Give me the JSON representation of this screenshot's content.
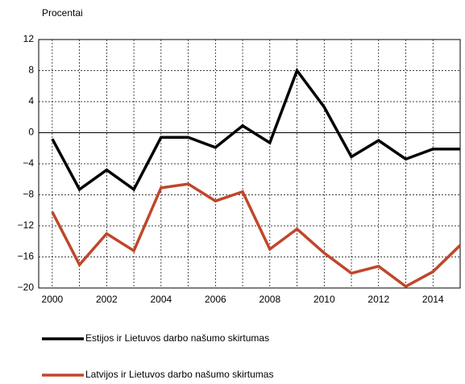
{
  "chart_data": {
    "type": "line",
    "y_label": "Procentai",
    "x": [
      2000,
      2001,
      2002,
      2003,
      2004,
      2005,
      2006,
      2007,
      2008,
      2009,
      2010,
      2011,
      2012,
      2013,
      2014,
      2015
    ],
    "series": [
      {
        "name": "Estijos ir Lietuvos darbo našumo skirtumas",
        "color": "#000000",
        "values": [
          -0.8,
          -7.3,
          -4.8,
          -7.3,
          -0.6,
          -0.6,
          -1.9,
          0.9,
          -1.3,
          8.0,
          3.3,
          -3.1,
          -1.0,
          -3.4,
          -2.1,
          -2.1
        ]
      },
      {
        "name": "Latvijos ir Lietuvos darbo našumo skirtumas",
        "color": "#c0462a",
        "values": [
          -10.2,
          -17.0,
          -13.0,
          -15.2,
          -7.1,
          -6.6,
          -8.8,
          -7.6,
          -15.0,
          -12.4,
          -15.5,
          -18.1,
          -17.2,
          -19.8,
          -17.9,
          -14.5
        ]
      }
    ],
    "xlim": [
      1999.5,
      2015
    ],
    "xticks": [
      2000,
      2002,
      2004,
      2006,
      2008,
      2010,
      2012,
      2014
    ],
    "ylim": [
      -20,
      12
    ],
    "yticks": [
      {
        "value": -20,
        "label": "−20"
      },
      {
        "value": -16,
        "label": "−16"
      },
      {
        "value": -12,
        "label": "−12"
      },
      {
        "value": -8,
        "label": "−8"
      },
      {
        "value": -4,
        "label": "−4"
      },
      0,
      4,
      8,
      12
    ],
    "grid": true
  }
}
